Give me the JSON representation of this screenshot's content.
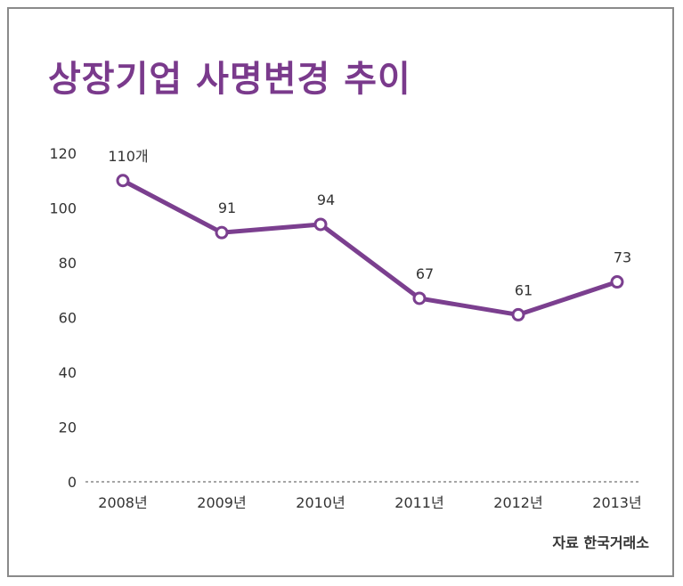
{
  "chart_data": {
    "type": "line",
    "title": "상장기업 사명변경 추이",
    "categories": [
      "2008년",
      "2009년",
      "2010년",
      "2011년",
      "2012년",
      "2013년"
    ],
    "series": [
      {
        "values": [
          110,
          91,
          94,
          67,
          61,
          73
        ],
        "data_labels": [
          "110개",
          "91",
          "94",
          "67",
          "61",
          "73"
        ]
      }
    ],
    "ylim": [
      0,
      120
    ],
    "yticks": [
      0,
      20,
      40,
      60,
      80,
      100,
      120
    ],
    "grid": false,
    "legend": "none",
    "source": "자료 한국거래소",
    "colors": {
      "line": "#7b3f8f",
      "title": "#7a3a8c",
      "baseline": "#888888",
      "text": "#333333"
    }
  }
}
